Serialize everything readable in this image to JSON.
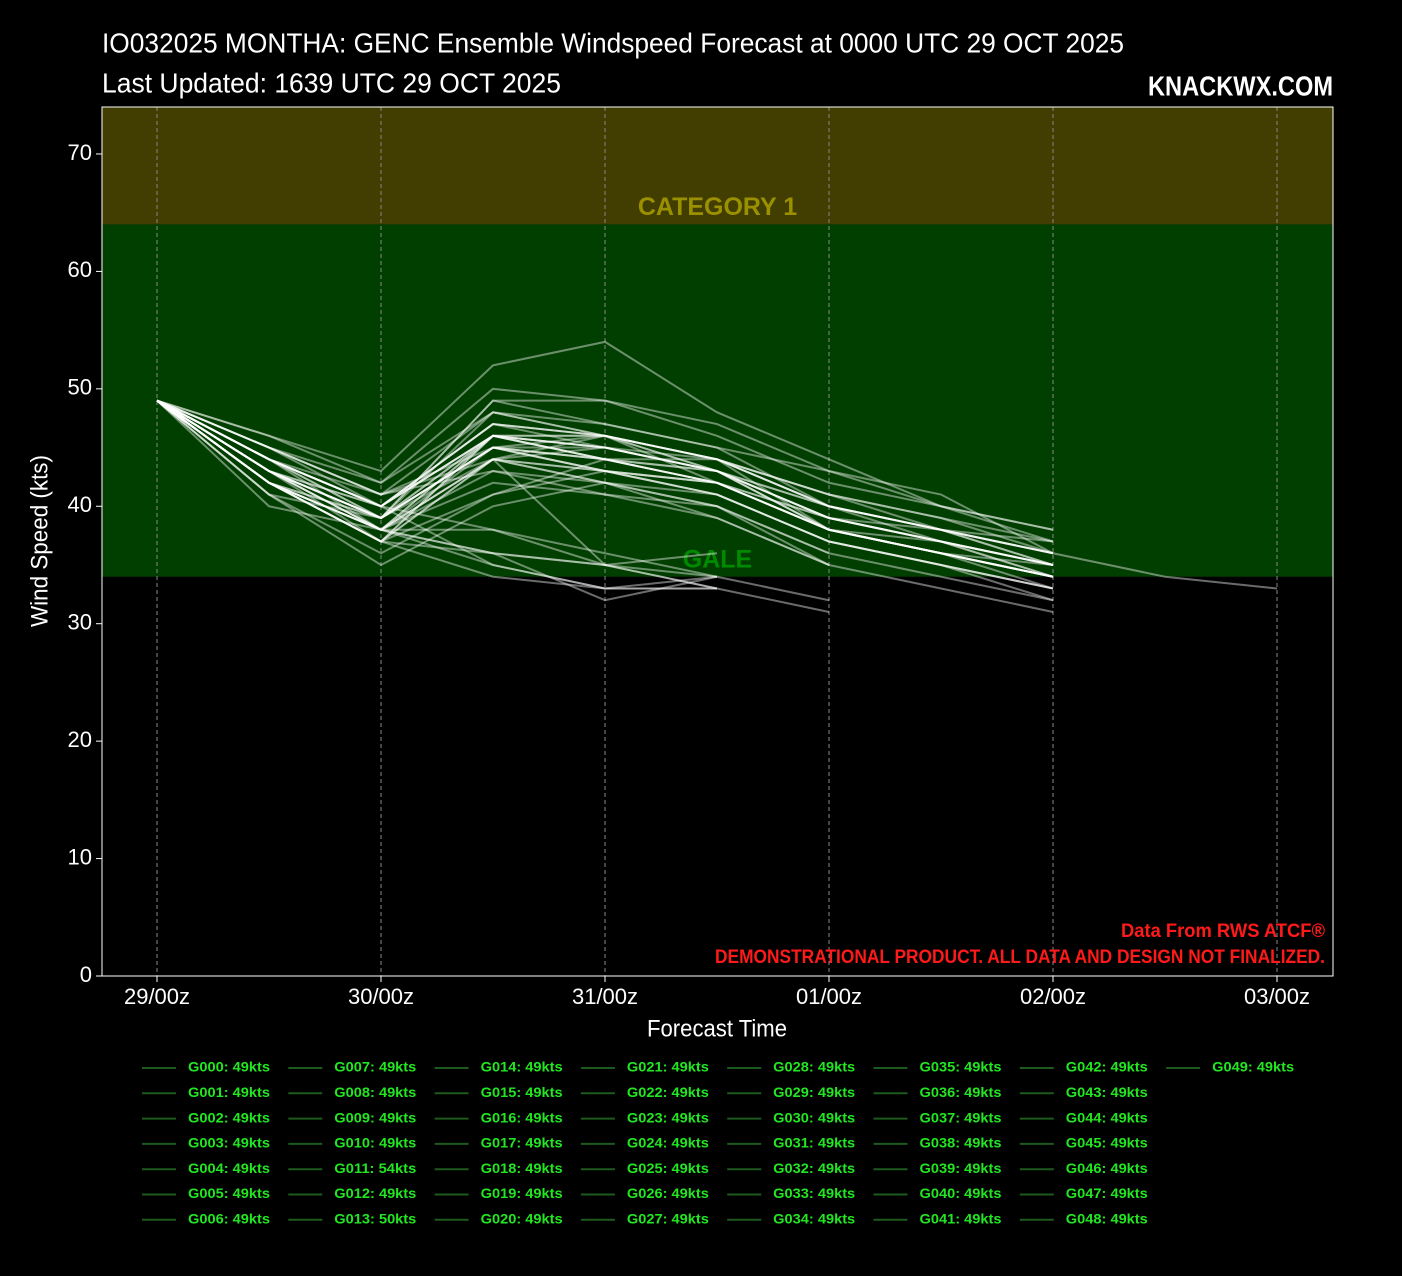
{
  "chart_data": {
    "type": "line",
    "title": "IO032025 MONTHA: GENC Ensemble Windspeed Forecast at 0000 UTC 29 OCT 2025",
    "subtitle": "Last Updated: 1639 UTC 29 OCT 2025",
    "brand": "KNACKWX.COM",
    "y_label": "Wind Speed (kts)",
    "x_label": "Forecast Time",
    "source_notes": [
      "Data From RWS ATCF®",
      "DEMONSTRATIONAL PRODUCT. ALL DATA AND DESIGN NOT FINALIZED."
    ],
    "bands": [
      {
        "label": "CATEGORY 1",
        "range": [
          64,
          74
        ],
        "color": "#423d00",
        "label_color": "#9a9000"
      },
      {
        "label": "GALE",
        "range": [
          34,
          64
        ],
        "color": "#003f00",
        "label_color": "#008a00"
      }
    ],
    "categories": [
      "29/00z",
      null,
      "30/00z",
      null,
      "31/00z",
      null,
      "01/00z",
      null,
      "02/00z",
      null,
      "03/00z"
    ],
    "ylim": [
      0,
      74
    ],
    "yticks": [
      0,
      10,
      20,
      30,
      40,
      50,
      60,
      70
    ],
    "x_grid": true,
    "line_color": "#ffffff",
    "line_opacity": 0.42,
    "legend_line_color": "#1d5a1d",
    "legend_text_color": "#22e622",
    "series": [
      {
        "name": "G000: 49kts",
        "values": [
          49,
          44,
          40,
          46,
          44,
          42,
          38,
          36,
          34,
          null,
          null
        ]
      },
      {
        "name": "G001: 49kts",
        "values": [
          49,
          42,
          38,
          45,
          43,
          41,
          37,
          35,
          33,
          null,
          null
        ]
      },
      {
        "name": "G002: 49kts",
        "values": [
          49,
          43,
          39,
          49,
          47,
          45,
          40,
          38,
          36,
          null,
          null
        ]
      },
      {
        "name": "G003: 49kts",
        "values": [
          49,
          45,
          41,
          44,
          42,
          40,
          36,
          34,
          32,
          null,
          null
        ]
      },
      {
        "name": "G004: 49kts",
        "values": [
          49,
          42,
          37,
          36,
          35,
          33,
          31,
          null,
          null,
          null,
          null
        ]
      },
      {
        "name": "G005: 49kts",
        "values": [
          49,
          44,
          40,
          35,
          33,
          34,
          null,
          null,
          null,
          null,
          null
        ]
      },
      {
        "name": "G006: 49kts",
        "values": [
          49,
          43,
          37,
          44,
          46,
          42,
          38,
          37,
          35,
          null,
          null
        ]
      },
      {
        "name": "G007: 49kts",
        "values": [
          49,
          46,
          42,
          48,
          46,
          44,
          40,
          38,
          37,
          null,
          null
        ]
      },
      {
        "name": "G008: 49kts",
        "values": [
          49,
          41,
          39,
          45,
          44,
          43,
          39,
          37,
          35,
          null,
          null
        ]
      },
      {
        "name": "G009: 49kts",
        "values": [
          49,
          42,
          38,
          46,
          45,
          43,
          38,
          36,
          34,
          null,
          null
        ]
      },
      {
        "name": "G010: 49kts",
        "values": [
          49,
          44,
          41,
          43,
          41,
          40,
          35,
          null,
          null,
          null,
          null
        ]
      },
      {
        "name": "G011: 54kts",
        "values": [
          49,
          46,
          43,
          52,
          54,
          48,
          44,
          40,
          38,
          null,
          null
        ]
      },
      {
        "name": "G012: 49kts",
        "values": [
          49,
          43,
          38,
          36,
          35,
          34,
          32,
          null,
          null,
          null,
          null
        ]
      },
      {
        "name": "G013: 50kts",
        "values": [
          49,
          45,
          42,
          50,
          49,
          47,
          43,
          40,
          37,
          null,
          null
        ]
      },
      {
        "name": "G014: 49kts",
        "values": [
          49,
          42,
          37,
          34,
          33,
          33,
          null,
          null,
          null,
          null,
          null
        ]
      },
      {
        "name": "G015: 49kts",
        "values": [
          49,
          43,
          40,
          47,
          46,
          44,
          41,
          39,
          36,
          null,
          null
        ]
      },
      {
        "name": "G016: 49kts",
        "values": [
          49,
          44,
          39,
          49,
          49,
          46,
          42,
          40,
          38,
          null,
          null
        ]
      },
      {
        "name": "G017: 49kts",
        "values": [
          49,
          41,
          35,
          40,
          42,
          39,
          35,
          null,
          null,
          null,
          null
        ]
      },
      {
        "name": "G018: 49kts",
        "values": [
          49,
          42,
          38,
          44,
          43,
          42,
          39,
          38,
          36,
          null,
          null
        ]
      },
      {
        "name": "G019: 49kts",
        "values": [
          49,
          43,
          39,
          46,
          44,
          42,
          38,
          36,
          33,
          null,
          null
        ]
      },
      {
        "name": "G020: 49kts",
        "values": [
          49,
          45,
          40,
          38,
          35,
          33,
          null,
          null,
          null,
          null,
          null
        ]
      },
      {
        "name": "G021: 49kts",
        "values": [
          49,
          42,
          37,
          41,
          44,
          44,
          38,
          36,
          34,
          null,
          null
        ]
      },
      {
        "name": "G022: 49kts",
        "values": [
          49,
          43,
          39,
          45,
          45,
          43,
          40,
          37,
          35,
          null,
          null
        ]
      },
      {
        "name": "G023: 49kts",
        "values": [
          49,
          44,
          40,
          47,
          46,
          44,
          41,
          38,
          36,
          null,
          null
        ]
      },
      {
        "name": "G024: 49kts",
        "values": [
          49,
          42,
          38,
          36,
          32,
          34,
          null,
          null,
          null,
          null,
          null
        ]
      },
      {
        "name": "G025: 49kts",
        "values": [
          49,
          43,
          39,
          46,
          46,
          43,
          39,
          37,
          35,
          null,
          null
        ]
      },
      {
        "name": "G026: 49kts",
        "values": [
          49,
          44,
          38,
          35,
          33,
          33,
          null,
          null,
          null,
          null,
          null
        ]
      },
      {
        "name": "G027: 49kts",
        "values": [
          49,
          42,
          37,
          44,
          45,
          43,
          38,
          36,
          34,
          null,
          null
        ]
      },
      {
        "name": "G028: 49kts",
        "values": [
          49,
          43,
          40,
          46,
          44,
          42,
          39,
          37,
          34,
          null,
          null
        ]
      },
      {
        "name": "G029: 49kts",
        "values": [
          49,
          45,
          41,
          48,
          47,
          45,
          43,
          41,
          36,
          34,
          33
        ]
      },
      {
        "name": "G030: 49kts",
        "values": [
          49,
          41,
          36,
          41,
          43,
          41,
          37,
          35,
          32,
          null,
          null
        ]
      },
      {
        "name": "G031: 49kts",
        "values": [
          49,
          44,
          39,
          45,
          46,
          44,
          40,
          38,
          35,
          null,
          null
        ]
      },
      {
        "name": "G032: 49kts",
        "values": [
          49,
          43,
          38,
          43,
          42,
          40,
          36,
          null,
          null,
          null,
          null
        ]
      },
      {
        "name": "G033: 49kts",
        "values": [
          49,
          42,
          38,
          46,
          45,
          43,
          39,
          37,
          35,
          null,
          null
        ]
      },
      {
        "name": "G034: 49kts",
        "values": [
          49,
          44,
          40,
          47,
          45,
          44,
          40,
          38,
          36,
          null,
          null
        ]
      },
      {
        "name": "G035: 49kts",
        "values": [
          49,
          43,
          39,
          44,
          35,
          36,
          null,
          null,
          null,
          null,
          null
        ]
      },
      {
        "name": "G036: 49kts",
        "values": [
          49,
          42,
          37,
          46,
          46,
          43,
          38,
          36,
          34,
          null,
          null
        ]
      },
      {
        "name": "G037: 49kts",
        "values": [
          49,
          45,
          41,
          45,
          43,
          42,
          38,
          36,
          35,
          null,
          null
        ]
      },
      {
        "name": "G038: 49kts",
        "values": [
          49,
          43,
          39,
          48,
          46,
          44,
          40,
          38,
          36,
          null,
          null
        ]
      },
      {
        "name": "G039: 49kts",
        "values": [
          49,
          42,
          38,
          44,
          43,
          41,
          37,
          35,
          33,
          null,
          null
        ]
      },
      {
        "name": "G040: 49kts",
        "values": [
          49,
          44,
          40,
          46,
          45,
          43,
          39,
          37,
          34,
          null,
          null
        ]
      },
      {
        "name": "G041: 49kts",
        "values": [
          49,
          40,
          38,
          42,
          41,
          39,
          35,
          33,
          31,
          null,
          null
        ]
      },
      {
        "name": "G042: 49kts",
        "values": [
          49,
          43,
          39,
          45,
          44,
          42,
          38,
          36,
          34,
          null,
          null
        ]
      },
      {
        "name": "G043: 49kts",
        "values": [
          49,
          42,
          37,
          46,
          45,
          43,
          40,
          38,
          35,
          null,
          null
        ]
      },
      {
        "name": "G044: 49kts",
        "values": [
          49,
          44,
          40,
          47,
          46,
          44,
          41,
          39,
          37,
          null,
          null
        ]
      },
      {
        "name": "G045: 49kts",
        "values": [
          49,
          43,
          38,
          38,
          36,
          34,
          null,
          null,
          null,
          null,
          null
        ]
      },
      {
        "name": "G046: 49kts",
        "values": [
          49,
          42,
          39,
          45,
          44,
          42,
          38,
          36,
          34,
          null,
          null
        ]
      },
      {
        "name": "G047: 49kts",
        "values": [
          49,
          44,
          40,
          46,
          44,
          43,
          39,
          37,
          35,
          null,
          null
        ]
      },
      {
        "name": "G048: 49kts",
        "values": [
          49,
          43,
          38,
          44,
          42,
          41,
          37,
          35,
          33,
          null,
          null
        ]
      },
      {
        "name": "G049: 49kts",
        "values": [
          49,
          42,
          39,
          45,
          43,
          42,
          38,
          36,
          34,
          null,
          null
        ]
      }
    ]
  }
}
